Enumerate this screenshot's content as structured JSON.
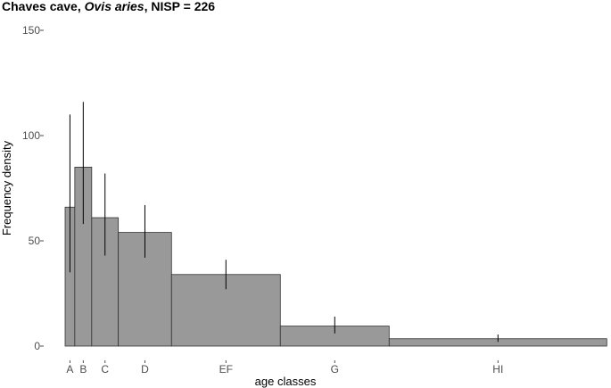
{
  "chart_data": {
    "type": "bar",
    "title_parts": [
      "Chaves cave, ",
      "Ovis aries",
      ", NISP = 226"
    ],
    "xlabel": "age classes",
    "ylabel": "Frequency density",
    "ylim": [
      0,
      150
    ],
    "yticks": [
      0,
      50,
      100,
      150
    ],
    "xlim": [
      0,
      22.5
    ],
    "grid": false,
    "legend": "none",
    "bar_color": "#999999",
    "bar_edge_color": "#333333",
    "bars": [
      {
        "label": "A",
        "x0": 0.0,
        "x1": 0.4,
        "value": 66,
        "err_low": 35,
        "err_high": 110
      },
      {
        "label": "B",
        "x0": 0.4,
        "x1": 1.1,
        "value": 85,
        "err_low": 58,
        "err_high": 116
      },
      {
        "label": "C",
        "x0": 1.1,
        "x1": 2.2,
        "value": 61,
        "err_low": 43,
        "err_high": 82
      },
      {
        "label": "D",
        "x0": 2.2,
        "x1": 4.4,
        "value": 54,
        "err_low": 42,
        "err_high": 67
      },
      {
        "label": "EF",
        "x0": 4.4,
        "x1": 8.9,
        "value": 34,
        "err_low": 27,
        "err_high": 41
      },
      {
        "label": "G",
        "x0": 8.9,
        "x1": 13.4,
        "value": 9.5,
        "err_low": 6,
        "err_high": 14
      },
      {
        "label": "HI",
        "x0": 13.4,
        "x1": 22.4,
        "value": 3.5,
        "err_low": 2,
        "err_high": 5.5
      }
    ]
  }
}
